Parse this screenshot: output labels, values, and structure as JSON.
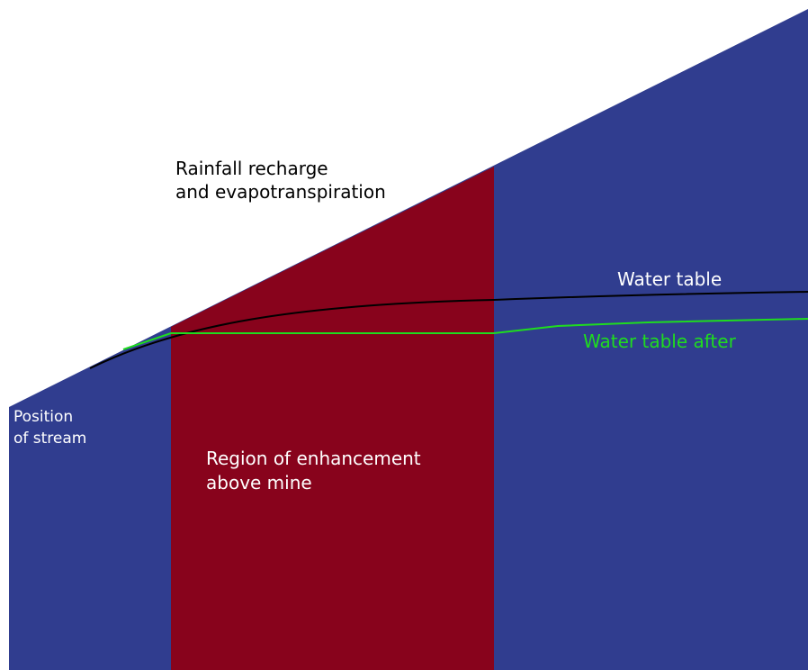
{
  "labels": {
    "rainfall_line1": "Rainfall recharge",
    "rainfall_line2": "and evapotranspiration",
    "water_table": "Water table",
    "water_table_after": "Water table after",
    "stream_line1": "Position",
    "stream_line2": "of stream",
    "region_line1": "Region of enhancement",
    "region_line2": "above mine"
  },
  "colors": {
    "ground": "#303d8f",
    "enhancement_region": "#88031c",
    "water_table": "#000000",
    "water_table_after": "#1fdc1f",
    "label_dark": "#000000",
    "label_light": "#ffffff",
    "label_green": "#1fdc1f"
  }
}
